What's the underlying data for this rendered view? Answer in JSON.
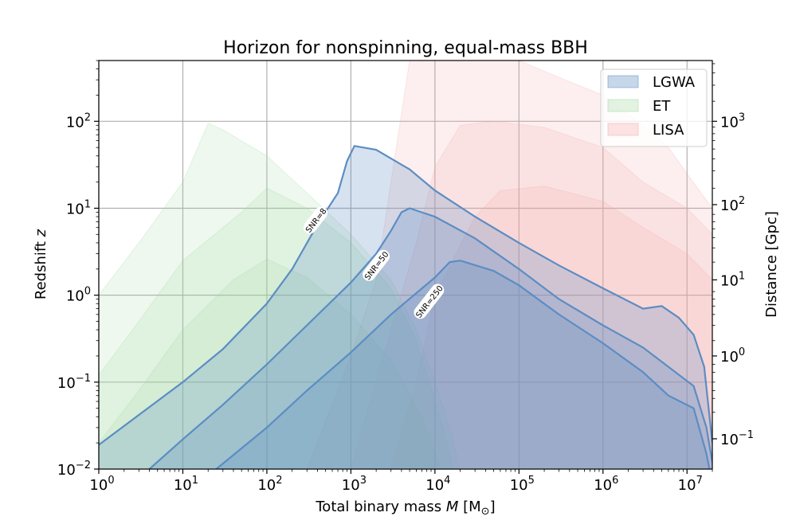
{
  "chart_data": {
    "type": "area",
    "title": "Horizon for nonspinning, equal-mass BBH",
    "xlabel": "Total binary mass",
    "xlabel_symbol": "M",
    "xlabel_unit": "[M",
    "xlabel_unit_sub": "⊙",
    "xlabel_unit_close": "]",
    "ylabel": "Redshift",
    "ylabel_symbol": "z",
    "ylabel_right": "Distance [Gpc]",
    "xscale": "log",
    "yscale": "log",
    "xlim": [
      1,
      20000000
    ],
    "ylim": [
      0.01,
      500
    ],
    "grid": true,
    "legend_position": "top-right",
    "x_ticks": [
      {
        "value": 1,
        "base": "10",
        "exp": "0"
      },
      {
        "value": 10,
        "base": "10",
        "exp": "1"
      },
      {
        "value": 100,
        "base": "10",
        "exp": "2"
      },
      {
        "value": 1000,
        "base": "10",
        "exp": "3"
      },
      {
        "value": 10000,
        "base": "10",
        "exp": "4"
      },
      {
        "value": 100000,
        "base": "10",
        "exp": "5"
      },
      {
        "value": 1000000,
        "base": "10",
        "exp": "6"
      },
      {
        "value": 10000000,
        "base": "10",
        "exp": "7"
      }
    ],
    "y_ticks": [
      {
        "value": 0.01,
        "base": "10",
        "exp": "−2"
      },
      {
        "value": 0.1,
        "base": "10",
        "exp": "−1"
      },
      {
        "value": 1,
        "base": "10",
        "exp": "0"
      },
      {
        "value": 10,
        "base": "10",
        "exp": "1"
      },
      {
        "value": 100,
        "base": "10",
        "exp": "2"
      }
    ],
    "y_right_ticks": [
      {
        "z": 0.0223,
        "base": "10",
        "exp": "−1"
      },
      {
        "z": 0.2,
        "base": "10",
        "exp": "0"
      },
      {
        "z": 1.5,
        "base": "10",
        "exp": "1"
      },
      {
        "z": 11,
        "base": "10",
        "exp": "2"
      },
      {
        "z": 100,
        "base": "10",
        "exp": "3"
      }
    ],
    "series": [
      {
        "name": "LGWA",
        "color": "#5b8dc4",
        "curves": [
          {
            "label": "SNR=8",
            "label_at": [
              380,
              7.3
            ],
            "points": [
              [
                1,
                0.019
              ],
              [
                3,
                0.042
              ],
              [
                10,
                0.1
              ],
              [
                30,
                0.24
              ],
              [
                100,
                0.8
              ],
              [
                200,
                2.0
              ],
              [
                400,
                6.5
              ],
              [
                700,
                15
              ],
              [
                900,
                35
              ],
              [
                1100,
                52
              ],
              [
                2000,
                47
              ],
              [
                5000,
                28
              ],
              [
                10000,
                16
              ],
              [
                30000,
                8
              ],
              [
                100000,
                4
              ],
              [
                300000,
                2.2
              ],
              [
                1000000,
                1.2
              ],
              [
                3000000,
                0.7
              ],
              [
                5000000,
                0.75
              ],
              [
                8000000,
                0.55
              ],
              [
                12000000,
                0.35
              ],
              [
                16000000,
                0.15
              ],
              [
                20000000,
                0.02
              ]
            ]
          },
          {
            "label": "SNR=50",
            "label_at": [
              2000,
              2.2
            ],
            "points": [
              [
                4,
                0.01
              ],
              [
                10,
                0.022
              ],
              [
                30,
                0.055
              ],
              [
                100,
                0.16
              ],
              [
                300,
                0.45
              ],
              [
                1000,
                1.4
              ],
              [
                2000,
                3.0
              ],
              [
                3000,
                5.5
              ],
              [
                4000,
                9.0
              ],
              [
                5000,
                10
              ],
              [
                10000,
                8
              ],
              [
                30000,
                4.5
              ],
              [
                100000,
                2.0
              ],
              [
                300000,
                0.9
              ],
              [
                1000000,
                0.45
              ],
              [
                3000000,
                0.25
              ],
              [
                6000000,
                0.15
              ],
              [
                12000000,
                0.09
              ],
              [
                17000000,
                0.03
              ],
              [
                20000000,
                0.012
              ]
            ]
          },
          {
            "label": "SNR=250",
            "label_at": [
              8500,
              0.85
            ],
            "points": [
              [
                25,
                0.01
              ],
              [
                100,
                0.03
              ],
              [
                300,
                0.08
              ],
              [
                1000,
                0.22
              ],
              [
                3000,
                0.6
              ],
              [
                10000,
                1.6
              ],
              [
                15000,
                2.4
              ],
              [
                20000,
                2.5
              ],
              [
                50000,
                1.9
              ],
              [
                100000,
                1.3
              ],
              [
                300000,
                0.6
              ],
              [
                1000000,
                0.28
              ],
              [
                3000000,
                0.13
              ],
              [
                6000000,
                0.07
              ],
              [
                12000000,
                0.05
              ],
              [
                17000000,
                0.015
              ],
              [
                18500000,
                0.01
              ]
            ]
          }
        ]
      },
      {
        "name": "ET",
        "color": "#9fd89f",
        "curves": [
          {
            "points": [
              [
                1,
                1.0
              ],
              [
                3,
                4
              ],
              [
                10,
                20
              ],
              [
                20,
                95
              ],
              [
                30,
                80
              ],
              [
                100,
                40
              ],
              [
                300,
                15
              ],
              [
                1000,
                5
              ],
              [
                3000,
                1.5
              ],
              [
                6000,
                0.4
              ],
              [
                10000,
                0.1
              ],
              [
                15000,
                0.03
              ],
              [
                20000,
                0.01
              ]
            ]
          },
          {
            "points": [
              [
                1,
                0.12
              ],
              [
                3,
                0.5
              ],
              [
                10,
                2.5
              ],
              [
                50,
                9
              ],
              [
                100,
                17
              ],
              [
                300,
                10
              ],
              [
                1000,
                4
              ],
              [
                3000,
                1.2
              ],
              [
                6000,
                0.3
              ],
              [
                10000,
                0.06
              ],
              [
                15000,
                0.015
              ],
              [
                16000,
                0.01
              ]
            ]
          },
          {
            "points": [
              [
                1,
                0.02
              ],
              [
                3,
                0.08
              ],
              [
                10,
                0.4
              ],
              [
                40,
                1.5
              ],
              [
                100,
                2.6
              ],
              [
                300,
                1.6
              ],
              [
                1000,
                0.6
              ],
              [
                3000,
                0.18
              ],
              [
                7000,
                0.04
              ],
              [
                12000,
                0.01
              ]
            ]
          }
        ]
      },
      {
        "name": "LISA",
        "color": "#f4a7a7",
        "curves": [
          {
            "points": [
              [
                300,
                0.01
              ],
              [
                1000,
                0.2
              ],
              [
                2000,
                1.5
              ],
              [
                3000,
                20
              ],
              [
                5000,
                500
              ],
              [
                100000,
                500
              ],
              [
                300000,
                320
              ],
              [
                1000000,
                200
              ],
              [
                3000000,
                90
              ],
              [
                6000000,
                50
              ],
              [
                10000000,
                25
              ],
              [
                20000000,
                10
              ]
            ]
          },
          {
            "points": [
              [
                1000,
                0.01
              ],
              [
                3000,
                0.4
              ],
              [
                6000,
                4
              ],
              [
                10000,
                30
              ],
              [
                20000,
                90
              ],
              [
                50000,
                100
              ],
              [
                200000,
                85
              ],
              [
                1000000,
                50
              ],
              [
                3000000,
                20
              ],
              [
                10000000,
                10
              ],
              [
                20000000,
                5
              ]
            ]
          },
          {
            "points": [
              [
                3000,
                0.01
              ],
              [
                6000,
                0.1
              ],
              [
                10000,
                1.0
              ],
              [
                30000,
                8
              ],
              [
                60000,
                16
              ],
              [
                200000,
                18
              ],
              [
                1000000,
                12
              ],
              [
                3000000,
                6
              ],
              [
                10000000,
                3
              ],
              [
                20000000,
                1.5
              ]
            ]
          }
        ]
      }
    ]
  }
}
